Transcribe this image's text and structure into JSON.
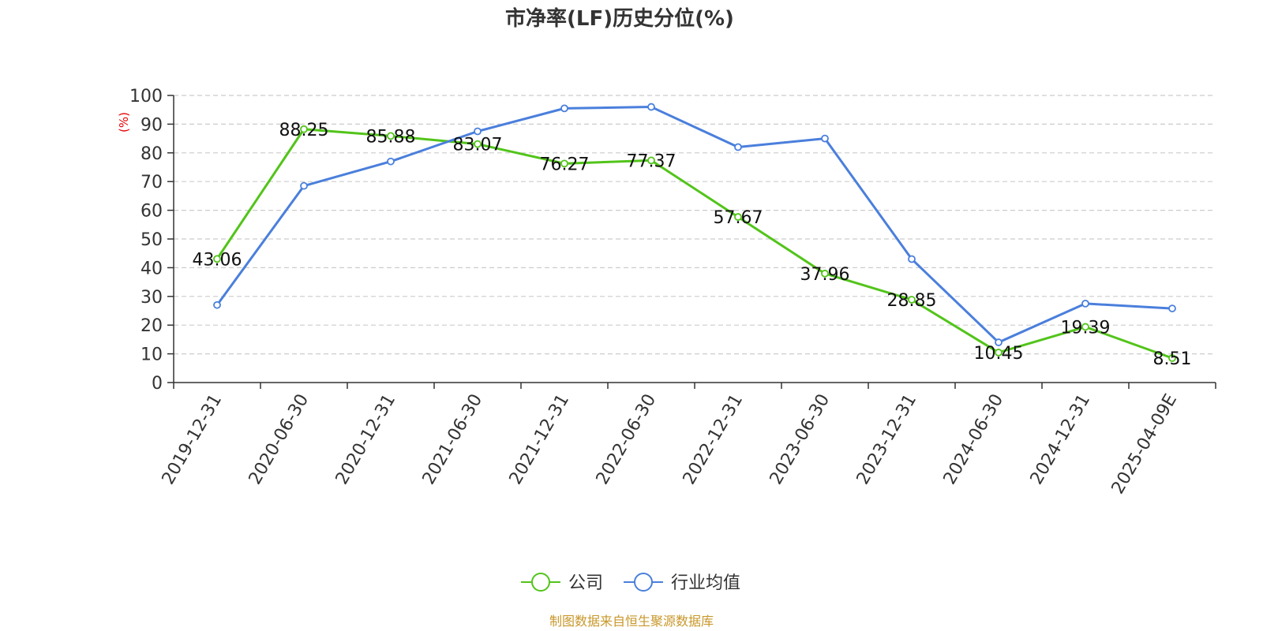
{
  "chart_data": {
    "type": "line",
    "title": "市净率(LF)历史分位(%)",
    "ylabel": "(%)",
    "ylim": [
      0,
      100
    ],
    "yticks": [
      0,
      10,
      20,
      30,
      40,
      50,
      60,
      70,
      80,
      90,
      100
    ],
    "categories": [
      "2019-12-31",
      "2020-06-30",
      "2020-12-31",
      "2021-06-30",
      "2021-12-31",
      "2022-06-30",
      "2022-12-31",
      "2023-06-30",
      "2023-12-31",
      "2024-06-30",
      "2024-12-31",
      "2025-04-09E"
    ],
    "series": [
      {
        "name": "公司",
        "color": "#52c41a",
        "show_labels": true,
        "values": [
          43.06,
          88.25,
          85.88,
          83.07,
          76.27,
          77.37,
          57.67,
          37.96,
          28.85,
          10.45,
          19.39,
          8.51
        ]
      },
      {
        "name": "行业均值",
        "color": "#4a7fdc",
        "show_labels": false,
        "values": [
          27,
          68.5,
          77,
          87.5,
          95.5,
          96,
          82,
          85,
          43,
          14,
          27.5,
          25.8
        ]
      }
    ],
    "grid": "horizontal-dashed",
    "legend": "bottom-center"
  },
  "source": "制图数据来自恒生聚源数据库"
}
